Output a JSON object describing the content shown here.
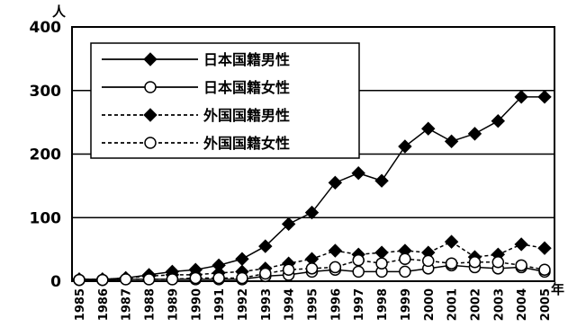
{
  "chart_data": {
    "type": "line",
    "y_unit": "人",
    "x_unit": "年",
    "ylim": [
      0,
      400
    ],
    "yticks": [
      0,
      100,
      200,
      300,
      400
    ],
    "grid": "horizontal",
    "legend_position": "top-left",
    "x": [
      "1985",
      "1986",
      "1987",
      "1988",
      "1989",
      "1990",
      "1991",
      "1992",
      "1993",
      "1994",
      "1995",
      "1996",
      "1997",
      "1998",
      "1999",
      "2000",
      "2001",
      "2002",
      "2003",
      "2004",
      "2005"
    ],
    "series": [
      {
        "name": "日本国籍男性",
        "style": "solid",
        "marker": "filled-diamond",
        "values": [
          3,
          3,
          5,
          10,
          15,
          18,
          25,
          35,
          55,
          90,
          108,
          155,
          170,
          158,
          212,
          240,
          220,
          232,
          252,
          290,
          290
        ]
      },
      {
        "name": "日本国籍女性",
        "style": "solid",
        "marker": "open-circle",
        "values": [
          2,
          2,
          3,
          3,
          3,
          3,
          3,
          3,
          8,
          10,
          15,
          18,
          15,
          15,
          15,
          20,
          25,
          22,
          20,
          22,
          15
        ]
      },
      {
        "name": "外国国籍男性",
        "style": "dashed",
        "marker": "filled-diamond",
        "values": [
          3,
          3,
          5,
          8,
          10,
          10,
          13,
          15,
          20,
          28,
          35,
          48,
          42,
          45,
          48,
          45,
          62,
          38,
          42,
          58,
          52
        ]
      },
      {
        "name": "外国国籍女性",
        "style": "dashed",
        "marker": "open-circle",
        "values": [
          2,
          2,
          3,
          3,
          3,
          5,
          5,
          5,
          12,
          18,
          20,
          22,
          33,
          28,
          35,
          32,
          28,
          30,
          30,
          25,
          18
        ]
      }
    ]
  }
}
